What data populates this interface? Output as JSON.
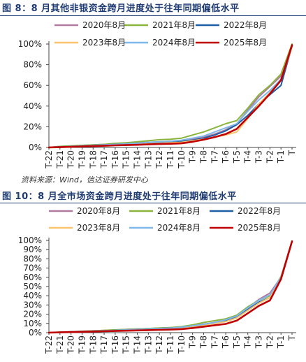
{
  "figures": [
    {
      "title": "图 8：8 月其他非银资金跨月进度处于往年同期偏低水平"
    },
    {
      "title": "图 10：8 月全市场资金跨月进度处于往年同期偏低水平"
    }
  ],
  "source": "资料来源：Wind，信达证券研发中心",
  "chart_data": [
    {
      "type": "line",
      "title": "图 8：8 月其他非银资金跨月进度处于往年同期偏低水平",
      "categories": [
        "T-22",
        "T-21",
        "T-20",
        "T-19",
        "T-18",
        "T-17",
        "T-16",
        "T-15",
        "T-14",
        "T-13",
        "T-12",
        "T-11",
        "T-10",
        "T-9",
        "T-8",
        "T-7",
        "T-6",
        "T-5",
        "T-4",
        "T-3",
        "T-2",
        "T-1",
        "T"
      ],
      "ylim": [
        0,
        100
      ],
      "yticks": [
        "0%",
        "20%",
        "40%",
        "60%",
        "80%",
        "100%"
      ],
      "legend": "top, two rows",
      "grid": false,
      "series": [
        {
          "name": "2020年8月",
          "color": "#b07aa1",
          "width": 2,
          "values": [
            0,
            1,
            1.5,
            2,
            2.5,
            3,
            3.5,
            4,
            4.5,
            5,
            5.5,
            6,
            6.5,
            8,
            10,
            13,
            17,
            23,
            36,
            49,
            59,
            69,
            98
          ]
        },
        {
          "name": "2021年8月",
          "color": "#8ab43c",
          "width": 2,
          "values": [
            0,
            1,
            1.5,
            2,
            2.5,
            3,
            4,
            4.5,
            5.5,
            6.5,
            7.5,
            8,
            9,
            12,
            15,
            19,
            23,
            26,
            38,
            51,
            60,
            71,
            100
          ]
        },
        {
          "name": "2022年8月",
          "color": "#1f5fa6",
          "width": 2,
          "values": [
            0,
            0.5,
            1,
            1.5,
            2,
            2.5,
            3,
            3.5,
            4,
            4.5,
            5,
            5.5,
            6,
            7,
            9,
            12,
            16,
            22,
            31,
            42,
            51,
            60,
            98
          ]
        },
        {
          "name": "2023年8月",
          "color": "#f9c46b",
          "width": 2,
          "values": [
            0,
            0.3,
            0.5,
            1,
            1.2,
            1.5,
            2,
            2.5,
            3,
            3.5,
            4,
            4.5,
            5,
            6.5,
            8,
            10,
            12,
            15,
            28,
            42,
            53,
            65,
            97
          ]
        },
        {
          "name": "2024年8月",
          "color": "#7fb8e8",
          "width": 2,
          "values": [
            0,
            0.5,
            1,
            1.5,
            2,
            2.5,
            3,
            3.5,
            4,
            5,
            5.5,
            6,
            7,
            9,
            11,
            15,
            19,
            23,
            35,
            46,
            55,
            66,
            98
          ]
        },
        {
          "name": "2025年8月",
          "color": "#c00000",
          "width": 2.6,
          "values": [
            0,
            0.3,
            0.6,
            1,
            1.3,
            1.6,
            2,
            2.3,
            2.6,
            3,
            3.3,
            3.6,
            4,
            5.5,
            7.5,
            10,
            13,
            18,
            29,
            40,
            52,
            65,
            99
          ]
        }
      ]
    },
    {
      "type": "line",
      "title": "图 10：8 月全市场资金跨月进度处于往年同期偏低水平",
      "categories": [
        "T-22",
        "T-21",
        "T-20",
        "T-19",
        "T-18",
        "T-17",
        "T-16",
        "T-15",
        "T-14",
        "T-13",
        "T-12",
        "T-11",
        "T-10",
        "T-9",
        "T-8",
        "T-7",
        "T-6",
        "T-5",
        "T-4",
        "T-3",
        "T-2",
        "T-1",
        "T"
      ],
      "ylim": [
        0,
        100
      ],
      "yticks": [
        "0%",
        "10%",
        "20%",
        "30%",
        "40%",
        "50%",
        "60%",
        "70%",
        "80%",
        "90%",
        "100%"
      ],
      "legend": "top, two rows",
      "grid": false,
      "series": [
        {
          "name": "2020年8月",
          "color": "#b07aa1",
          "width": 2,
          "values": [
            0,
            0.5,
            1,
            1.5,
            2,
            2.5,
            3,
            3.5,
            4,
            4.5,
            5,
            5.5,
            6,
            7.5,
            9,
            11,
            14,
            18,
            27,
            36,
            43,
            60,
            99
          ]
        },
        {
          "name": "2021年8月",
          "color": "#8ab43c",
          "width": 2,
          "values": [
            0,
            0.5,
            1,
            1.5,
            2,
            2.5,
            3,
            3.5,
            4,
            4.5,
            5,
            5.5,
            6.5,
            8.5,
            11,
            13,
            15,
            19,
            28,
            35,
            40,
            61,
            99
          ]
        },
        {
          "name": "2022年8月",
          "color": "#1f5fa6",
          "width": 2,
          "values": [
            0,
            0.4,
            0.8,
            1.2,
            1.6,
            2,
            2.5,
            3,
            3.5,
            4,
            4.5,
            5,
            5.5,
            7,
            9,
            11,
            13,
            17,
            25,
            33,
            38,
            58,
            99
          ]
        },
        {
          "name": "2023年8月",
          "color": "#f9c46b",
          "width": 2,
          "values": [
            0,
            0.3,
            0.6,
            1,
            1.3,
            1.6,
            2,
            2.4,
            2.8,
            3.2,
            3.6,
            4,
            4.5,
            6,
            8,
            10,
            12,
            16,
            24,
            32,
            38,
            58,
            99
          ]
        },
        {
          "name": "2024年8月",
          "color": "#7fb8e8",
          "width": 2,
          "values": [
            0,
            0.4,
            0.8,
            1.2,
            1.6,
            2,
            2.5,
            3,
            3.5,
            4,
            4.5,
            5,
            6,
            7.5,
            9,
            11,
            14,
            18,
            27,
            35,
            41,
            60,
            99
          ]
        },
        {
          "name": "2025年8月",
          "color": "#c00000",
          "width": 2.6,
          "values": [
            0,
            0.3,
            0.6,
            0.9,
            1.2,
            1.5,
            1.8,
            2.1,
            2.4,
            2.7,
            3,
            3.3,
            3.8,
            5,
            6.5,
            8,
            9.5,
            13,
            21,
            29,
            35,
            58,
            99
          ]
        }
      ]
    }
  ]
}
